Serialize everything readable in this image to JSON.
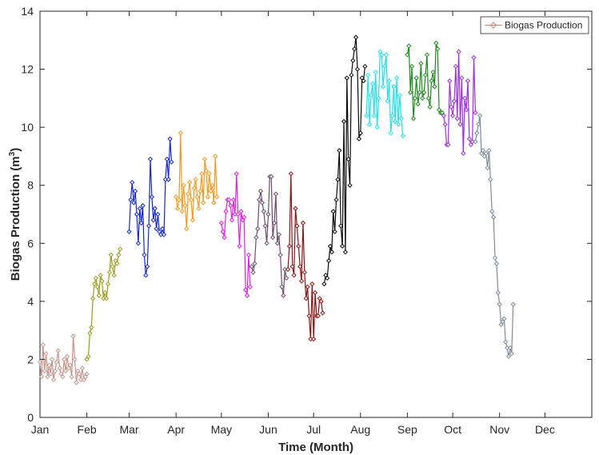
{
  "chart_data": {
    "type": "line",
    "xlabel": "Time (Month)",
    "ylabel_main": "Biogas Production (m",
    "ylabel_sup": "3",
    "ylabel_close": ")",
    "ylim": [
      0,
      14
    ],
    "xlim": [
      0,
      365
    ],
    "y_ticks": [
      0,
      2,
      4,
      6,
      8,
      10,
      12,
      14
    ],
    "x_ticks": [
      {
        "label": "Jan",
        "day": 0
      },
      {
        "label": "Feb",
        "day": 31
      },
      {
        "label": "Mar",
        "day": 59
      },
      {
        "label": "Apr",
        "day": 90
      },
      {
        "label": "May",
        "day": 120
      },
      {
        "label": "Jun",
        "day": 151
      },
      {
        "label": "Jul",
        "day": 181
      },
      {
        "label": "Aug",
        "day": 212
      },
      {
        "label": "Sep",
        "day": 243
      },
      {
        "label": "Oct",
        "day": 273
      },
      {
        "label": "Nov",
        "day": 304
      },
      {
        "label": "Dec",
        "day": 334
      }
    ],
    "grid": false,
    "legend": {
      "position": "top-right",
      "label": "Biogas Production",
      "color": "#b8877e"
    },
    "series": [
      {
        "color": "#c4958c",
        "points": [
          [
            0,
            1.9
          ],
          [
            1,
            1.4
          ],
          [
            2,
            2.5
          ],
          [
            3,
            1.6
          ],
          [
            4,
            2.2
          ],
          [
            5,
            1.4
          ],
          [
            6,
            1.8
          ],
          [
            7,
            1.5
          ],
          [
            8,
            2.0
          ],
          [
            9,
            1.3
          ],
          [
            10,
            1.6
          ],
          [
            11,
            1.9
          ],
          [
            12,
            2.3
          ],
          [
            13,
            1.7
          ],
          [
            14,
            1.5
          ],
          [
            15,
            1.4
          ],
          [
            16,
            2.0
          ],
          [
            17,
            1.6
          ],
          [
            18,
            2.1
          ],
          [
            19,
            1.7
          ],
          [
            20,
            1.8
          ],
          [
            21,
            1.4
          ],
          [
            22,
            2.8
          ],
          [
            23,
            2.0
          ],
          [
            24,
            1.2
          ],
          [
            25,
            1.6
          ],
          [
            26,
            1.5
          ],
          [
            27,
            1.3
          ],
          [
            28,
            1.7
          ],
          [
            29,
            1.3
          ],
          [
            30,
            1.4
          ],
          [
            31,
            1.5
          ]
        ]
      },
      {
        "color": "#9a9a1f",
        "points": [
          [
            31,
            2.0
          ],
          [
            32,
            2.1
          ],
          [
            33,
            2.9
          ],
          [
            34,
            3.1
          ],
          [
            35,
            4.1
          ],
          [
            36,
            4.6
          ],
          [
            37,
            4.8
          ],
          [
            38,
            4.5
          ],
          [
            39,
            4.2
          ],
          [
            40,
            4.9
          ],
          [
            41,
            4.7
          ],
          [
            42,
            4.1
          ],
          [
            43,
            4.3
          ],
          [
            44,
            4.1
          ],
          [
            45,
            4.6
          ],
          [
            46,
            5.0
          ],
          [
            47,
            5.6
          ],
          [
            48,
            5.2
          ],
          [
            49,
            4.9
          ],
          [
            50,
            5.4
          ],
          [
            51,
            5.3
          ],
          [
            52,
            5.6
          ],
          [
            53,
            5.8
          ]
        ]
      },
      {
        "color": "#1428c8",
        "points": [
          [
            59,
            6.4
          ],
          [
            60,
            7.5
          ],
          [
            61,
            8.1
          ],
          [
            62,
            7.4
          ],
          [
            63,
            7.8
          ],
          [
            64,
            7.0
          ],
          [
            65,
            6.0
          ],
          [
            66,
            7.2
          ],
          [
            67,
            6.7
          ],
          [
            68,
            7.3
          ],
          [
            69,
            5.6
          ],
          [
            70,
            4.9
          ],
          [
            71,
            5.2
          ],
          [
            72,
            6.6
          ],
          [
            73,
            8.9
          ],
          [
            74,
            7.6
          ],
          [
            75,
            6.8
          ],
          [
            76,
            7.2
          ],
          [
            77,
            6.5
          ],
          [
            78,
            7.0
          ],
          [
            79,
            6.4
          ],
          [
            80,
            6.3
          ],
          [
            81,
            6.5
          ],
          [
            82,
            6.3
          ],
          [
            83,
            8.2
          ],
          [
            84,
            8.9
          ],
          [
            85,
            8.2
          ],
          [
            86,
            9.6
          ],
          [
            87,
            8.8
          ]
        ]
      },
      {
        "color": "#f0981e",
        "points": [
          [
            90,
            7.6
          ],
          [
            91,
            7.2
          ],
          [
            92,
            7.5
          ],
          [
            93,
            9.8
          ],
          [
            94,
            7.1
          ],
          [
            95,
            8.0
          ],
          [
            96,
            7.3
          ],
          [
            97,
            6.5
          ],
          [
            98,
            7.7
          ],
          [
            99,
            8.1
          ],
          [
            100,
            7.5
          ],
          [
            101,
            6.8
          ],
          [
            102,
            7.9
          ],
          [
            103,
            8.2
          ],
          [
            104,
            7.6
          ],
          [
            105,
            7.2
          ],
          [
            106,
            7.8
          ],
          [
            107,
            8.4
          ],
          [
            108,
            7.4
          ],
          [
            109,
            8.9
          ],
          [
            110,
            8.5
          ],
          [
            111,
            7.6
          ],
          [
            112,
            8.4
          ],
          [
            113,
            7.8
          ],
          [
            114,
            8.0
          ],
          [
            115,
            7.4
          ],
          [
            116,
            9.0
          ],
          [
            117,
            7.6
          ]
        ]
      },
      {
        "color": "#e01ee0",
        "points": [
          [
            120,
            6.7
          ],
          [
            121,
            6.4
          ],
          [
            122,
            6.2
          ],
          [
            123,
            7.1
          ],
          [
            124,
            7.5
          ],
          [
            125,
            7.5
          ],
          [
            126,
            7.3
          ],
          [
            127,
            6.8
          ],
          [
            128,
            7.5
          ],
          [
            129,
            7.0
          ],
          [
            130,
            8.4
          ],
          [
            131,
            7.0
          ],
          [
            132,
            5.9
          ],
          [
            133,
            7.1
          ],
          [
            134,
            6.8
          ],
          [
            135,
            6.9
          ],
          [
            136,
            4.4
          ],
          [
            137,
            4.2
          ],
          [
            138,
            5.6
          ],
          [
            139,
            4.5
          ]
        ]
      },
      {
        "color": "#6b4d6b",
        "points": [
          [
            140,
            5.2
          ],
          [
            141,
            5.0
          ],
          [
            142,
            5.3
          ],
          [
            143,
            6.2
          ],
          [
            144,
            6.5
          ],
          [
            145,
            7.5
          ],
          [
            146,
            7.8
          ],
          [
            147,
            7.4
          ],
          [
            148,
            7.1
          ],
          [
            149,
            6.6
          ],
          [
            150,
            6.0
          ],
          [
            151,
            7.0
          ],
          [
            152,
            8.3
          ],
          [
            153,
            8.3
          ],
          [
            154,
            6.2
          ],
          [
            155,
            6.7
          ],
          [
            156,
            7.7
          ],
          [
            157,
            6.0
          ],
          [
            158,
            6.3
          ],
          [
            159,
            5.6
          ],
          [
            160,
            4.5
          ],
          [
            161,
            4.2
          ],
          [
            162,
            5.1
          ],
          [
            163,
            4.8
          ]
        ]
      },
      {
        "color": "#8b1313",
        "points": [
          [
            164,
            5.1
          ],
          [
            165,
            5.9
          ],
          [
            166,
            8.4
          ],
          [
            167,
            5.2
          ],
          [
            168,
            4.9
          ],
          [
            169,
            7.2
          ],
          [
            170,
            6.6
          ],
          [
            171,
            5.9
          ],
          [
            172,
            5.2
          ],
          [
            173,
            4.7
          ],
          [
            174,
            6.7
          ],
          [
            175,
            5.0
          ],
          [
            176,
            4.1
          ],
          [
            177,
            4.5
          ],
          [
            178,
            3.5
          ],
          [
            179,
            2.7
          ],
          [
            180,
            4.6
          ],
          [
            181,
            2.7
          ],
          [
            182,
            4.3
          ],
          [
            183,
            3.5
          ],
          [
            184,
            3.5
          ],
          [
            185,
            4.1
          ],
          [
            186,
            4.0
          ],
          [
            187,
            3.6
          ]
        ]
      },
      {
        "color": "#0a0a0a",
        "points": [
          [
            188,
            4.6
          ],
          [
            189,
            4.9
          ],
          [
            190,
            4.8
          ],
          [
            191,
            5.4
          ],
          [
            192,
            5.9
          ],
          [
            193,
            5.7
          ],
          [
            194,
            7.1
          ],
          [
            195,
            6.4
          ],
          [
            196,
            7.5
          ],
          [
            197,
            8.2
          ],
          [
            198,
            9.2
          ],
          [
            199,
            6.6
          ],
          [
            200,
            5.9
          ],
          [
            201,
            10.2
          ],
          [
            202,
            5.7
          ],
          [
            203,
            11.7
          ],
          [
            204,
            8.9
          ],
          [
            205,
            8.0
          ],
          [
            206,
            11.8
          ],
          [
            207,
            12.3
          ],
          [
            208,
            12.7
          ],
          [
            209,
            13.1
          ],
          [
            210,
            12.0
          ],
          [
            211,
            9.6
          ],
          [
            212,
            9.8
          ],
          [
            213,
            11.7
          ],
          [
            214,
            11.6
          ],
          [
            215,
            12.1
          ]
        ]
      },
      {
        "color": "#1ee1e8",
        "points": [
          [
            216,
            10.4
          ],
          [
            217,
            11.8
          ],
          [
            218,
            10.1
          ],
          [
            219,
            11.1
          ],
          [
            220,
            11.5
          ],
          [
            221,
            10.4
          ],
          [
            222,
            11.9
          ],
          [
            223,
            10.0
          ],
          [
            224,
            11.0
          ],
          [
            225,
            12.6
          ],
          [
            226,
            12.5
          ],
          [
            227,
            11.4
          ],
          [
            228,
            12.1
          ],
          [
            229,
            12.5
          ],
          [
            230,
            10.9
          ],
          [
            231,
            11.6
          ],
          [
            232,
            9.8
          ],
          [
            233,
            10.4
          ],
          [
            234,
            11.4
          ],
          [
            235,
            10.2
          ],
          [
            236,
            11.7
          ],
          [
            237,
            10.1
          ],
          [
            238,
            11.1
          ],
          [
            239,
            10.3
          ],
          [
            240,
            9.7
          ]
        ]
      },
      {
        "color": "#1f8a1f",
        "points": [
          [
            243,
            12.5
          ],
          [
            244,
            12.8
          ],
          [
            245,
            11.2
          ],
          [
            246,
            12.1
          ],
          [
            247,
            10.3
          ],
          [
            248,
            11.0
          ],
          [
            249,
            11.7
          ],
          [
            250,
            10.8
          ],
          [
            251,
            11.2
          ],
          [
            252,
            12.2
          ],
          [
            253,
            11.0
          ],
          [
            254,
            11.2
          ],
          [
            255,
            11.8
          ],
          [
            256,
            12.5
          ],
          [
            257,
            11.0
          ],
          [
            258,
            10.7
          ],
          [
            259,
            11.6
          ],
          [
            260,
            11.9
          ],
          [
            261,
            11.4
          ],
          [
            262,
            12.9
          ],
          [
            263,
            12.7
          ],
          [
            264,
            10.6
          ],
          [
            265,
            10.5
          ],
          [
            266,
            10.5
          ]
        ]
      },
      {
        "color": "#9b30d8",
        "points": [
          [
            267,
            10.4
          ],
          [
            268,
            10.1
          ],
          [
            269,
            9.4
          ],
          [
            270,
            9.4
          ],
          [
            271,
            11.6
          ],
          [
            272,
            10.7
          ],
          [
            273,
            10.4
          ],
          [
            274,
            10.9
          ],
          [
            275,
            12.1
          ],
          [
            276,
            10.3
          ],
          [
            277,
            12.6
          ],
          [
            278,
            10.1
          ],
          [
            279,
            11.7
          ],
          [
            280,
            9.1
          ],
          [
            281,
            11.0
          ],
          [
            282,
            10.6
          ],
          [
            283,
            11.6
          ],
          [
            284,
            9.6
          ],
          [
            285,
            9.4
          ],
          [
            286,
            9.5
          ],
          [
            287,
            12.4
          ],
          [
            288,
            10.5
          ]
        ]
      },
      {
        "color": "#7e8c9a",
        "points": [
          [
            288,
            9.5
          ],
          [
            289,
            9.8
          ],
          [
            290,
            10.1
          ],
          [
            291,
            10.4
          ],
          [
            292,
            9.1
          ],
          [
            293,
            9.2
          ],
          [
            294,
            9.0
          ],
          [
            295,
            9.1
          ],
          [
            296,
            8.6
          ],
          [
            297,
            9.2
          ],
          [
            298,
            8.2
          ],
          [
            299,
            7.1
          ],
          [
            300,
            6.9
          ],
          [
            301,
            5.5
          ],
          [
            302,
            5.3
          ],
          [
            303,
            4.3
          ],
          [
            304,
            3.9
          ],
          [
            305,
            3.2
          ],
          [
            306,
            3.3
          ],
          [
            307,
            3.4
          ],
          [
            308,
            2.6
          ],
          [
            309,
            2.4
          ],
          [
            310,
            2.1
          ],
          [
            311,
            2.4
          ],
          [
            312,
            2.2
          ],
          [
            313,
            3.9
          ]
        ]
      }
    ]
  }
}
